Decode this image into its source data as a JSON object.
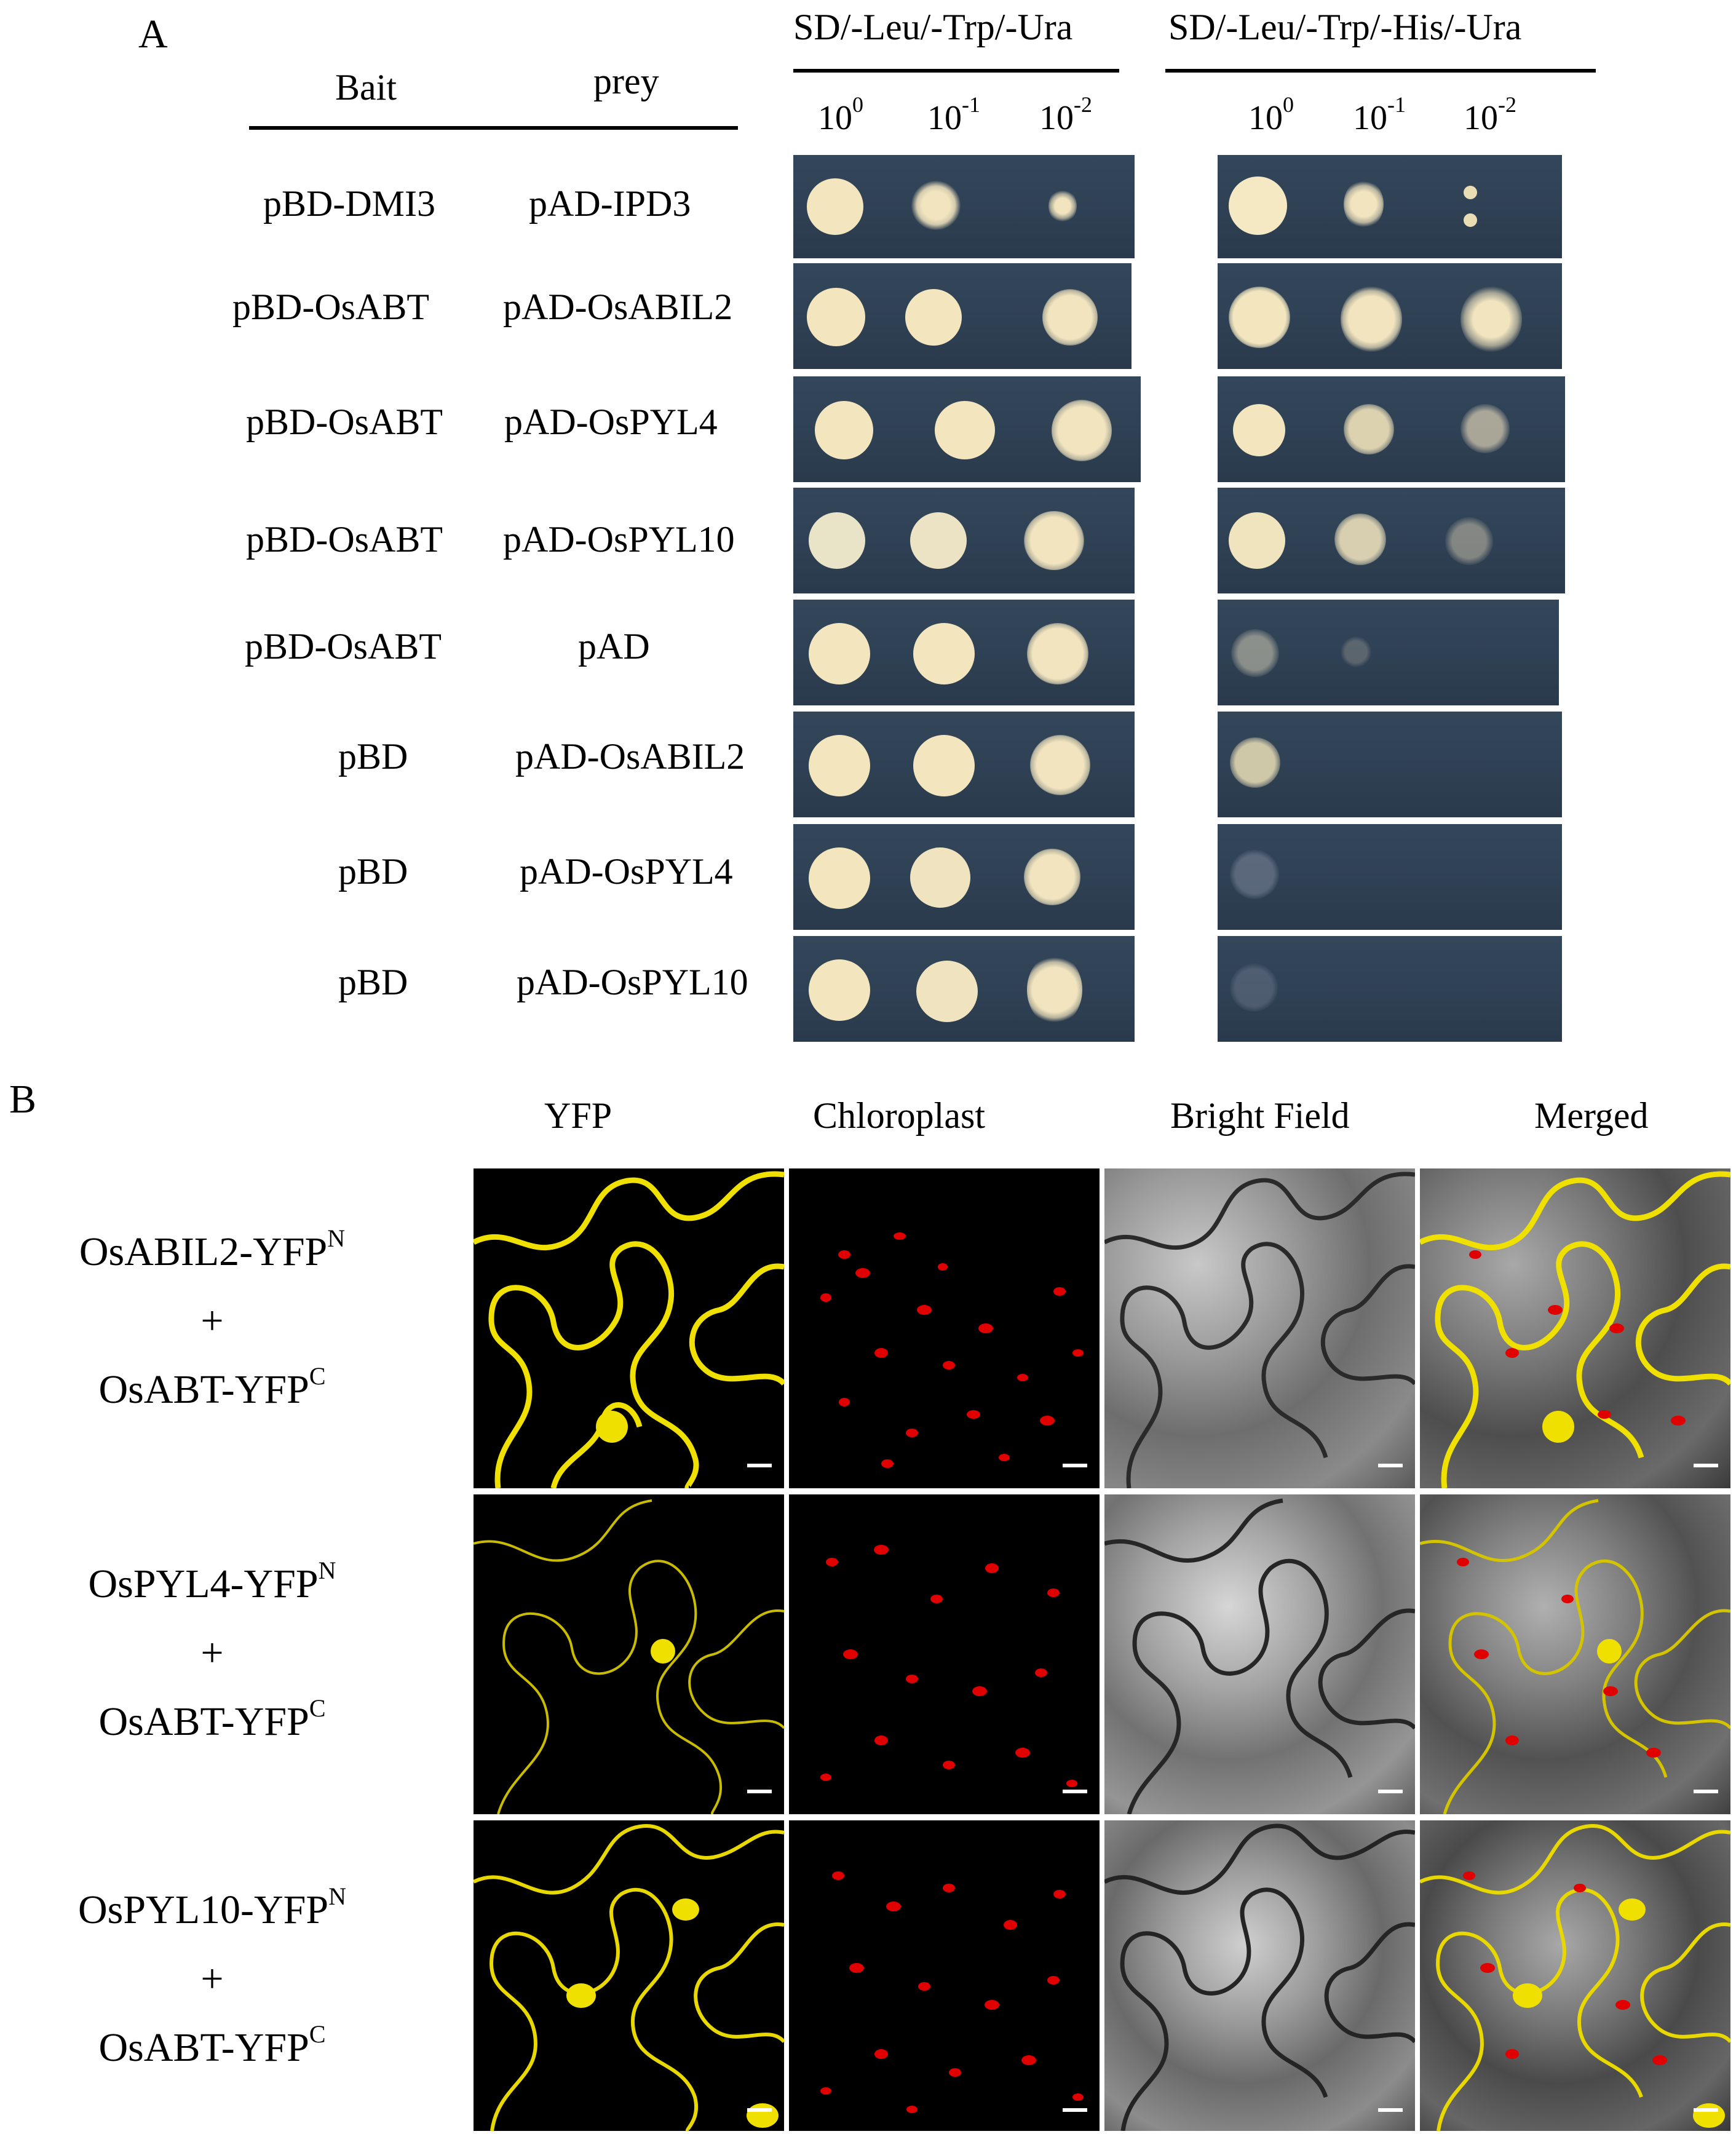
{
  "panel_a": {
    "letter": "A",
    "columns": {
      "bait": "Bait",
      "prey": "prey"
    },
    "media": [
      "SD/-Leu/-Trp/-Ura",
      "SD/-Leu/-Trp/-His/-Ura"
    ],
    "dilutions": [
      {
        "base": "10",
        "exp": "0"
      },
      {
        "base": "10",
        "exp": "-1"
      },
      {
        "base": "10",
        "exp": "-2"
      }
    ],
    "rows": [
      {
        "bait": "pBD-DMI3",
        "prey": "pAD-IPD3"
      },
      {
        "bait": "pBD-OsABT",
        "prey": "pAD-OsABIL2"
      },
      {
        "bait": "pBD-OsABT",
        "prey": "pAD-OsPYL4"
      },
      {
        "bait": "pBD-OsABT",
        "prey": "pAD-OsPYL10"
      },
      {
        "bait": "pBD-OsABT",
        "prey": "pAD"
      },
      {
        "bait": "pBD",
        "prey": "pAD-OsABIL2"
      },
      {
        "bait": "pBD",
        "prey": "pAD-OsPYL4"
      },
      {
        "bait": "pBD",
        "prey": "pAD-OsPYL10"
      }
    ]
  },
  "panel_b": {
    "letter": "B",
    "columns": [
      "YFP",
      "Chloroplast",
      "Bright Field",
      "Merged"
    ],
    "rows": [
      {
        "line1": "OsABIL2-YFP",
        "sup1": "N",
        "plus": "+",
        "line2": "OsABT-YFP",
        "sup2": "C"
      },
      {
        "line1": "OsPYL4-YFP",
        "sup1": "N",
        "plus": "+",
        "line2": "OsABT-YFP",
        "sup2": "C"
      },
      {
        "line1": "OsPYL10-YFP",
        "sup1": "N",
        "plus": "+",
        "line2": "OsABT-YFP",
        "sup2": "C"
      }
    ]
  },
  "colors": {
    "plate": "#2f4154",
    "colony": "#f3e6bf",
    "yfp": "#f0e000",
    "chloroplast": "#e00000",
    "microscopy_background": "#000000"
  }
}
